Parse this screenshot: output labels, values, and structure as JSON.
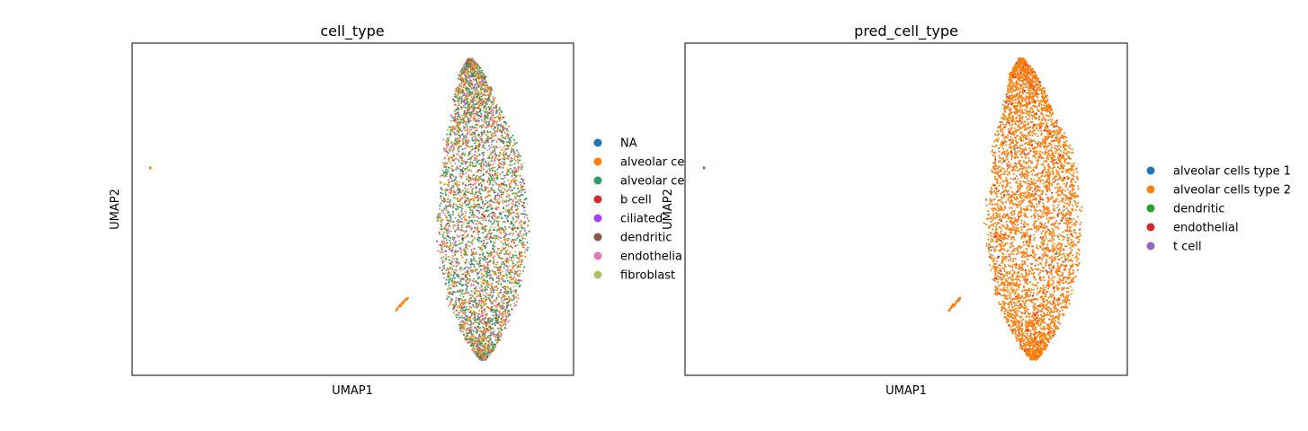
{
  "chart_data": [
    {
      "type": "scatter",
      "title": "cell_type",
      "xlabel": "UMAP1",
      "ylabel": "UMAP2",
      "grid": false,
      "legend_placement": "right, outside plot (entries partially cut off)",
      "legend": [
        {
          "label": "NA",
          "color": "#1f77b4"
        },
        {
          "label": "alveolar ce",
          "color": "#ff7f0e"
        },
        {
          "label": "alveolar ce",
          "color": "#279e68"
        },
        {
          "label": "b cell",
          "color": "#d62728"
        },
        {
          "label": "ciliated",
          "color": "#aa40fc"
        },
        {
          "label": "dendritic",
          "color": "#8c564b"
        },
        {
          "label": "endothelia",
          "color": "#e377c2"
        },
        {
          "label": "fibroblast",
          "color": "#b5bd61"
        }
      ],
      "series": [
        {
          "name": "NA",
          "color": "#1f77b4",
          "share": 0.02
        },
        {
          "name": "alveolar ce",
          "color": "#ff7f0e",
          "share": 0.3
        },
        {
          "name": "alveolar ce",
          "color": "#279e68",
          "share": 0.32
        },
        {
          "name": "b cell",
          "color": "#d62728",
          "share": 0.02
        },
        {
          "name": "ciliated",
          "color": "#aa40fc",
          "share": 0.02
        },
        {
          "name": "dendritic",
          "color": "#8c564b",
          "share": 0.06
        },
        {
          "name": "endothelia",
          "color": "#e377c2",
          "share": 0.14
        },
        {
          "name": "fibroblast",
          "color": "#b5bd61",
          "share": 0.12
        }
      ]
    },
    {
      "type": "scatter",
      "title": "pred_cell_type",
      "xlabel": "UMAP1",
      "ylabel": "UMAP2",
      "grid": false,
      "legend_placement": "right, outside plot",
      "legend": [
        {
          "label": "alveolar cells type 1",
          "color": "#1f77b4"
        },
        {
          "label": "alveolar cells type 2",
          "color": "#ff7f0e"
        },
        {
          "label": "dendritic",
          "color": "#2ca02c"
        },
        {
          "label": "endothelial",
          "color": "#d62728"
        },
        {
          "label": "t cell",
          "color": "#9467bd"
        }
      ],
      "series": [
        {
          "name": "alveolar cells type 1",
          "color": "#1f77b4",
          "share": 0.002
        },
        {
          "name": "alveolar cells type 2",
          "color": "#ff7f0e",
          "share": 0.95
        },
        {
          "name": "dendritic",
          "color": "#2ca02c",
          "share": 0.002
        },
        {
          "name": "endothelial",
          "color": "#d62728",
          "share": 0.045
        },
        {
          "name": "t cell",
          "color": "#9467bd",
          "share": 0.001
        }
      ]
    }
  ]
}
